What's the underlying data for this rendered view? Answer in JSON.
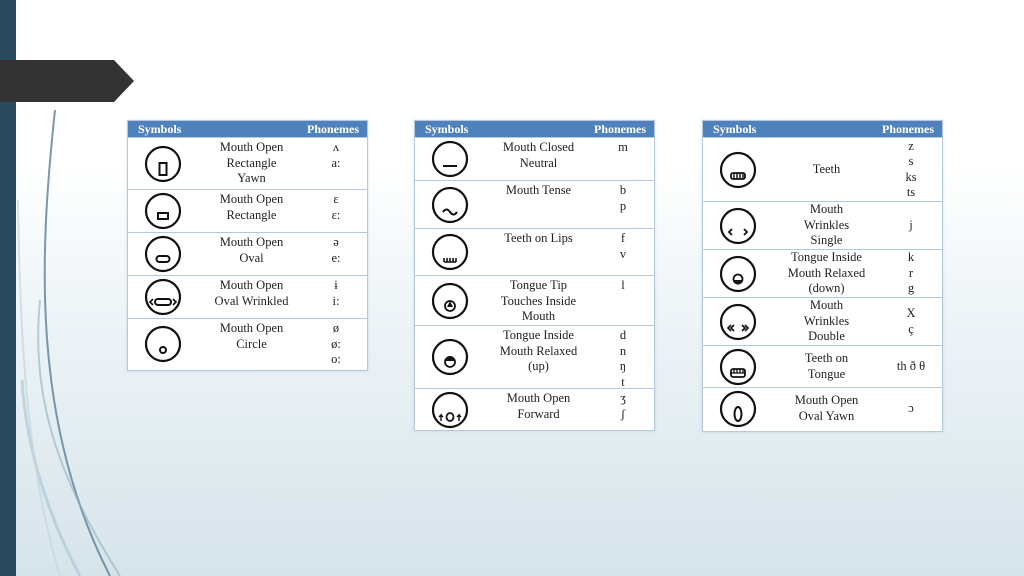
{
  "slide": {
    "accent_color": "#2b4a5e",
    "header_color": "#4f81bd"
  },
  "tables": [
    {
      "header": {
        "symbols": "Symbols",
        "phonemes": "Phonemes"
      },
      "rows": [
        {
          "icon": "mouth-open-rectangle-yawn-icon",
          "label": "Mouth Open\nRectangle\nYawn",
          "phonemes": "ʌ\na:"
        },
        {
          "icon": "mouth-open-rectangle-icon",
          "label": "Mouth Open\nRectangle",
          "phonemes": "ɛ\nɛ:"
        },
        {
          "icon": "mouth-open-oval-icon",
          "label": "Mouth Open\nOval",
          "phonemes": "ə\ne:"
        },
        {
          "icon": "mouth-open-oval-wrinkled-icon",
          "label": "Mouth Open\nOval Wrinkled",
          "phonemes": "ɨ\ni:"
        },
        {
          "icon": "mouth-open-circle-icon",
          "label": "Mouth Open\nCircle",
          "phonemes": "ø\nø:\no:"
        }
      ]
    },
    {
      "header": {
        "symbols": "Symbols",
        "phonemes": "Phonemes"
      },
      "rows": [
        {
          "icon": "mouth-closed-neutral-icon",
          "label": "Mouth Closed\nNeutral",
          "phonemes": "m"
        },
        {
          "icon": "mouth-tense-icon",
          "label": "Mouth Tense",
          "phonemes": "b\np"
        },
        {
          "icon": "teeth-on-lips-icon",
          "label": "Teeth on Lips",
          "phonemes": "f\nv"
        },
        {
          "icon": "tongue-tip-touches-inside-mouth-icon",
          "label": "Tongue Tip\nTouches Inside\nMouth",
          "phonemes": "l"
        },
        {
          "icon": "tongue-inside-mouth-relaxed-up-icon",
          "label": "Tongue Inside\nMouth Relaxed\n(up)",
          "phonemes": "d\nn\nŋ\nt"
        },
        {
          "icon": "mouth-open-forward-icon",
          "label": "Mouth Open\nForward",
          "phonemes": "ʒ\nʃ"
        }
      ]
    },
    {
      "header": {
        "symbols": "Symbols",
        "phonemes": "Phonemes"
      },
      "rows": [
        {
          "icon": "teeth-icon",
          "label": "Teeth",
          "phonemes": "z\ns\nks\nts"
        },
        {
          "icon": "mouth-wrinkles-single-icon",
          "label": "Mouth\nWrinkles\nSingle",
          "phonemes": "j"
        },
        {
          "icon": "tongue-inside-mouth-relaxed-down-icon",
          "label": "Tongue Inside\nMouth Relaxed\n(down)",
          "phonemes": "k\nr\ng"
        },
        {
          "icon": "mouth-wrinkles-double-icon",
          "label": "Mouth\nWrinkles\nDouble",
          "phonemes": "X\nç"
        },
        {
          "icon": "teeth-on-tongue-icon",
          "label": "Teeth on\nTongue",
          "phonemes": "th ð θ"
        },
        {
          "icon": "mouth-open-oval-yawn-icon",
          "label": "Mouth Open\nOval Yawn",
          "phonemes": "ɔ"
        }
      ]
    }
  ]
}
